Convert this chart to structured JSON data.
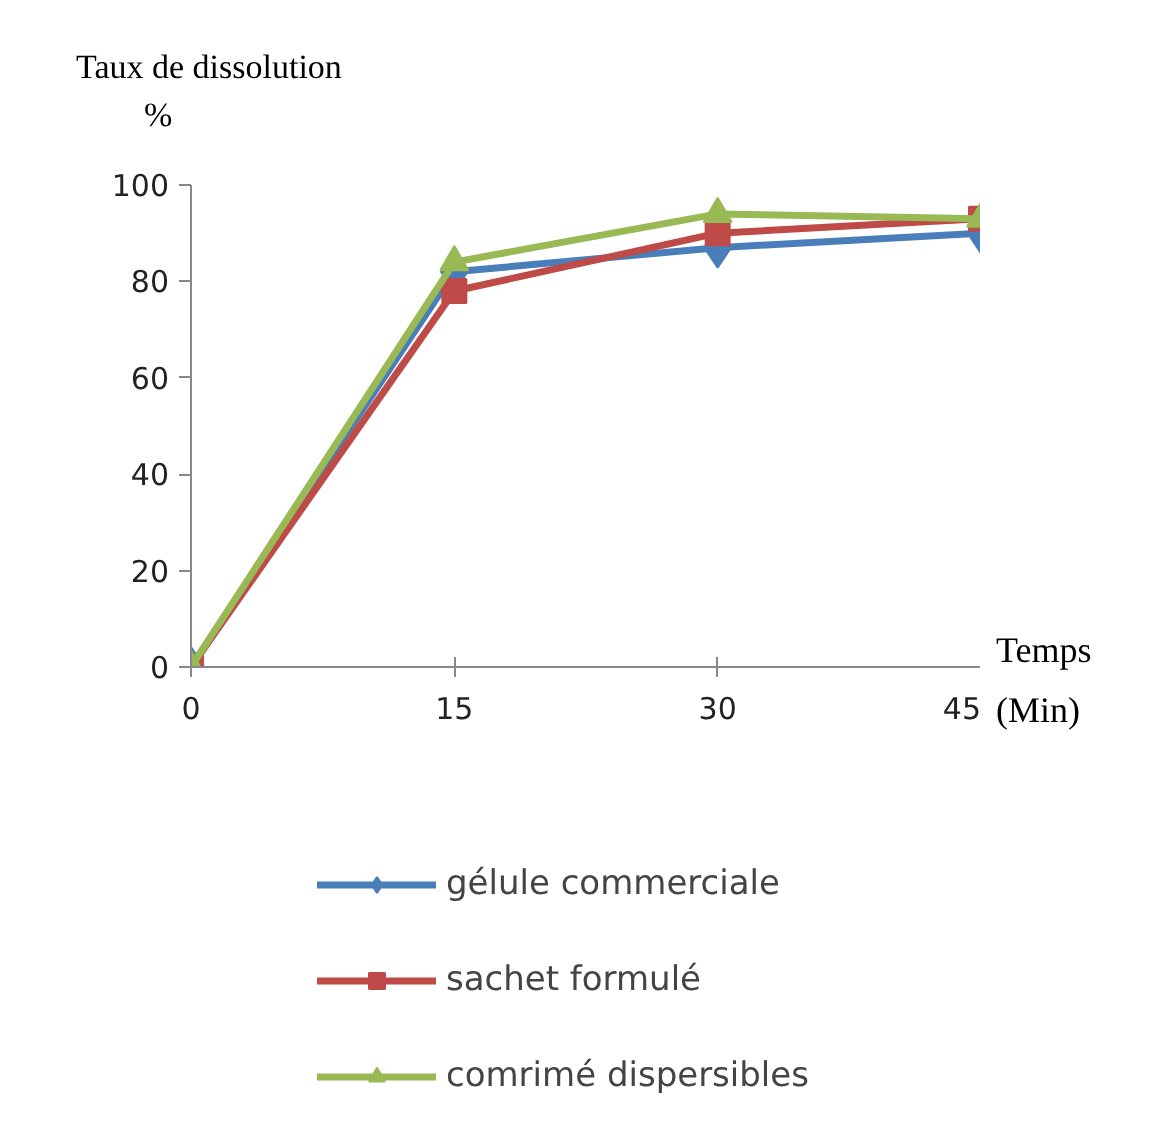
{
  "chart_data": {
    "type": "line",
    "ylabel": "Taux de dissolution\n%",
    "xlabel": "Temps\n(Min)",
    "x": [
      0,
      15,
      30,
      45
    ],
    "xlim": [
      0,
      45
    ],
    "xticks": [
      0,
      15,
      30,
      45
    ],
    "ylim": [
      0,
      100
    ],
    "yticks": [
      0,
      20,
      40,
      60,
      80,
      100
    ],
    "grid": false,
    "legend": "bottom",
    "line_style": "solid",
    "series": [
      {
        "name": "gélule commerciale",
        "color": "#4a7ebb",
        "marker": "diamond",
        "values": [
          0,
          82,
          87,
          90
        ]
      },
      {
        "name": "sachet formulé",
        "color": "#be4b48",
        "marker": "square",
        "values": [
          0,
          78,
          90,
          93
        ]
      },
      {
        "name": "comrimé dispersibles",
        "color": "#98b954",
        "marker": "triangle",
        "values": [
          0,
          84,
          94,
          93
        ]
      }
    ]
  }
}
